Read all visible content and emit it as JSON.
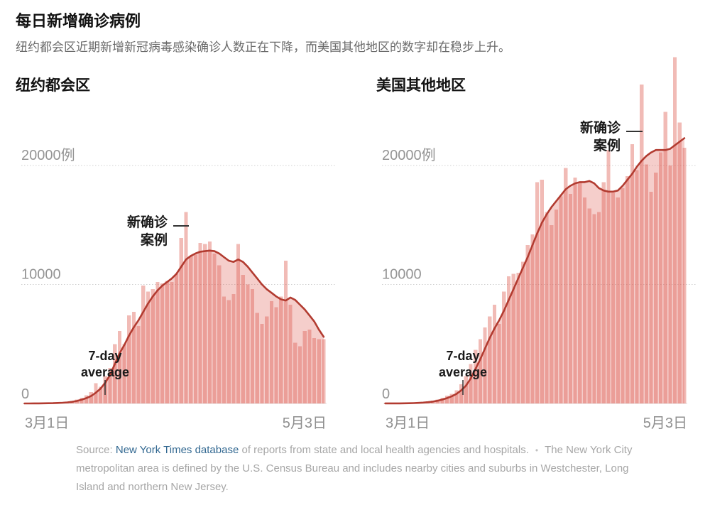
{
  "page": {
    "title": "每日新增确诊病例",
    "subtitle": "纽约都会区近期新增新冠病毒感染确诊人数正在下降，而美国其他地区的数字却在稳步上升。"
  },
  "axis": {
    "y_top_label": "20000例",
    "y_mid_label": "10000",
    "y_zero_label": "0",
    "x_start_label": "3月1日",
    "x_end_label": "5月3日"
  },
  "annotations": {
    "new_cases_line1": "新确诊",
    "new_cases_line2": "案例",
    "avg_line1": "7-day",
    "avg_line2": "average"
  },
  "footer": {
    "source_prefix": "Source: ",
    "source_link": "New York Times database",
    "source_rest": " of reports from state and local health agencies and hospitals.",
    "bullet": "•",
    "note": "The New York City metropolitan area is defined by the U.S. Census Bureau and includes nearby cities and suburbs in Westchester, Long Island and northern New Jersey."
  },
  "colors": {
    "bar": "rgba(222,92,82,0.42)",
    "area": "rgba(222,92,82,0.30)",
    "line": "#b23b30",
    "grid": "#d0d0d0",
    "baseline": "#e0dedd",
    "axis_text": "#949494",
    "x_axis_text": "#8f8f8f",
    "annotation_text": "#1a1a1a",
    "annotation_tick": "#333333",
    "link": "#326891",
    "footer_text": "#a6a6a6"
  },
  "chart_data": [
    {
      "type": "bar+line",
      "title": "纽约都会区",
      "x_range": [
        "3月1日",
        "5月3日"
      ],
      "x_span_days": 64,
      "y_gridlines": [
        10000,
        20000
      ],
      "ylim": [
        0,
        20000
      ],
      "bar_series_name": "新确诊案例",
      "line_series_name": "7-day average",
      "annotated_bar_index": 34,
      "annotated_bar_value": 16100,
      "bars": [
        2,
        2,
        5,
        10,
        15,
        25,
        40,
        60,
        90,
        140,
        210,
        320,
        480,
        700,
        950,
        1700,
        1400,
        2300,
        3000,
        5000,
        6100,
        5000,
        7400,
        7700,
        6500,
        9900,
        9400,
        9600,
        10200,
        10100,
        10300,
        10200,
        10900,
        13900,
        16100,
        12400,
        12500,
        13500,
        13400,
        13600,
        12600,
        11600,
        9000,
        8700,
        9200,
        13400,
        10800,
        10000,
        9600,
        7600,
        6700,
        7300,
        8600,
        8100,
        9000,
        12000,
        8300,
        5100,
        4800,
        6100,
        6200,
        5500,
        5400,
        5400
      ],
      "avg": [
        1,
        1,
        3,
        6,
        10,
        16,
        25,
        40,
        60,
        90,
        140,
        210,
        310,
        450,
        620,
        900,
        1250,
        1750,
        2400,
        3300,
        4200,
        4900,
        5700,
        6400,
        7000,
        7700,
        8400,
        9000,
        9500,
        9900,
        10200,
        10500,
        10900,
        11500,
        12100,
        12400,
        12600,
        12750,
        12800,
        12850,
        12800,
        12600,
        12300,
        12000,
        11900,
        12100,
        11900,
        11500,
        11000,
        10500,
        10000,
        9600,
        9300,
        9000,
        8750,
        8650,
        8900,
        8700,
        8300,
        7900,
        7400,
        6900,
        6200,
        5600
      ]
    },
    {
      "type": "bar+line",
      "title": "美国其他地区",
      "x_range": [
        "3月1日",
        "5月3日"
      ],
      "x_span_days": 64,
      "y_gridlines": [
        10000,
        20000
      ],
      "ylim": [
        0,
        20000
      ],
      "bar_series_name": "新确诊案例",
      "line_series_name": "7-day average",
      "annotated_bar_index": 54,
      "annotated_bar_value": 26800,
      "bars": [
        5,
        5,
        8,
        12,
        20,
        30,
        50,
        80,
        120,
        170,
        240,
        340,
        480,
        650,
        820,
        1100,
        1600,
        2300,
        3300,
        4500,
        5400,
        6400,
        7300,
        8300,
        6700,
        9400,
        10700,
        10900,
        11000,
        11900,
        13300,
        14200,
        18600,
        18800,
        16100,
        15000,
        16300,
        17400,
        19800,
        17600,
        19000,
        18600,
        17300,
        16400,
        15900,
        16100,
        18600,
        21300,
        17700,
        17300,
        18100,
        19100,
        21800,
        19600,
        26800,
        20100,
        17800,
        19400,
        21100,
        24500,
        20000,
        29100,
        23600,
        21500
      ],
      "avg": [
        3,
        3,
        5,
        8,
        12,
        18,
        28,
        45,
        70,
        105,
        155,
        225,
        320,
        450,
        600,
        800,
        1100,
        1500,
        2100,
        2900,
        3700,
        4600,
        5500,
        6300,
        7000,
        7800,
        8700,
        9600,
        10500,
        11400,
        12300,
        13300,
        14300,
        15200,
        15900,
        16500,
        17000,
        17500,
        18000,
        18300,
        18500,
        18600,
        18600,
        18700,
        18500,
        18100,
        17900,
        17800,
        17800,
        17900,
        18300,
        18800,
        19300,
        19900,
        20400,
        20800,
        21100,
        21300,
        21300,
        21300,
        21400,
        21700,
        22000,
        22300
      ]
    }
  ]
}
